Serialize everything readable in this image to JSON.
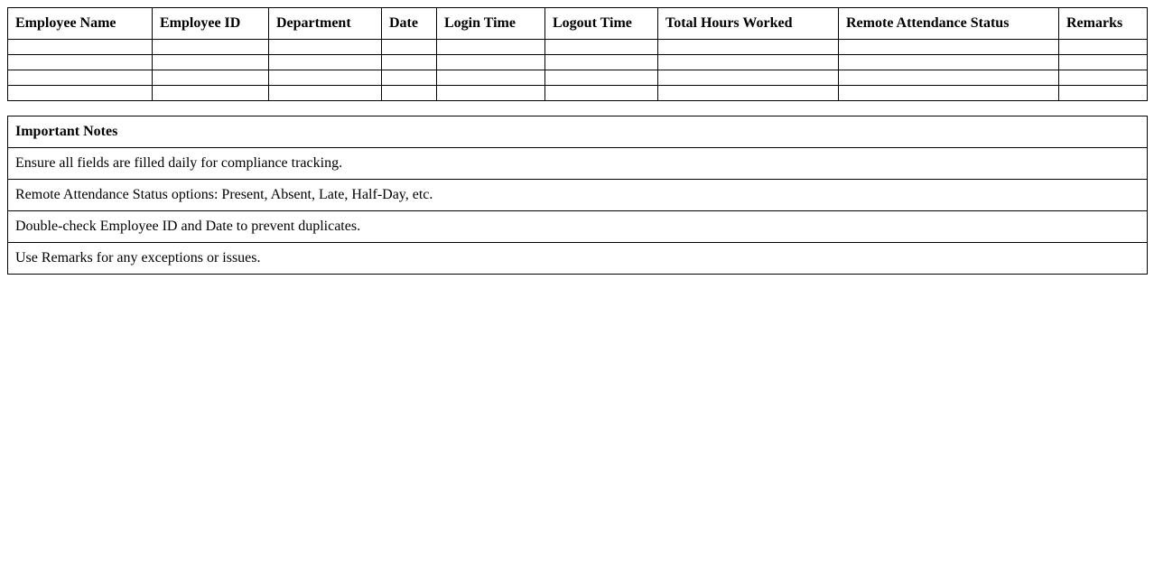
{
  "attendance_table": {
    "headers": [
      "Employee Name",
      "Employee ID",
      "Department",
      "Date",
      "Login Time",
      "Logout Time",
      "Total Hours Worked",
      "Remote Attendance Status",
      "Remarks"
    ],
    "empty_row_count": 4
  },
  "notes": {
    "title": "Important Notes",
    "items": [
      "Ensure all fields are filled daily for compliance tracking.",
      "Remote Attendance Status options: Present, Absent, Late, Half-Day, etc.",
      "Double-check Employee ID and Date to prevent duplicates.",
      "Use Remarks for any exceptions or issues."
    ]
  },
  "colors": {
    "border": "#000000",
    "text": "#000000",
    "background": "#ffffff"
  }
}
